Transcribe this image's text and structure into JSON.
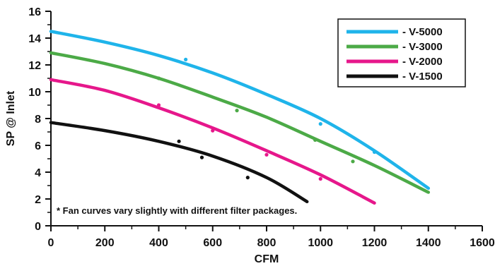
{
  "chart_data": {
    "type": "line",
    "xlabel": "CFM",
    "ylabel": "SP @ Inlet",
    "xlim": [
      0,
      1600
    ],
    "ylim": [
      0,
      16
    ],
    "x_ticks": [
      0,
      200,
      400,
      600,
      800,
      1000,
      1200,
      1400,
      1600
    ],
    "y_ticks": [
      0,
      2,
      4,
      6,
      8,
      10,
      12,
      14,
      16
    ],
    "grid": false,
    "legend_position": "top-right",
    "note": "* Fan curves vary slightly with different filter packages.",
    "series": [
      {
        "name": "- V-5000",
        "color": "#1fb4ea",
        "curve_x": [
          0,
          200,
          400,
          600,
          800,
          1000,
          1200,
          1400
        ],
        "curve_y": [
          14.5,
          13.7,
          12.7,
          11.4,
          9.8,
          8.0,
          5.6,
          2.8
        ],
        "points": [
          [
            500,
            12.4
          ],
          [
            1000,
            7.6
          ],
          [
            1200,
            5.5
          ]
        ]
      },
      {
        "name": "- V-3000",
        "color": "#4caa47",
        "curve_x": [
          0,
          200,
          400,
          600,
          800,
          1000,
          1200,
          1400
        ],
        "curve_y": [
          12.9,
          12.1,
          11.0,
          9.6,
          8.1,
          6.3,
          4.5,
          2.5
        ],
        "points": [
          [
            400,
            11.0
          ],
          [
            690,
            8.6
          ],
          [
            980,
            6.4
          ],
          [
            1120,
            4.8
          ]
        ]
      },
      {
        "name": "- V-2000",
        "color": "#e6178b",
        "curve_x": [
          0,
          200,
          400,
          600,
          800,
          1000,
          1200
        ],
        "curve_y": [
          10.9,
          10.1,
          8.8,
          7.3,
          5.6,
          3.8,
          1.7
        ],
        "points": [
          [
            400,
            9.0
          ],
          [
            600,
            7.1
          ],
          [
            800,
            5.3
          ],
          [
            1000,
            3.5
          ]
        ]
      },
      {
        "name": "- V-1500",
        "color": "#111111",
        "curve_x": [
          0,
          200,
          400,
          600,
          800,
          950
        ],
        "curve_y": [
          7.7,
          7.1,
          6.3,
          5.2,
          3.6,
          1.8
        ],
        "points": [
          [
            475,
            6.3
          ],
          [
            560,
            5.1
          ],
          [
            730,
            3.6
          ]
        ]
      }
    ]
  }
}
